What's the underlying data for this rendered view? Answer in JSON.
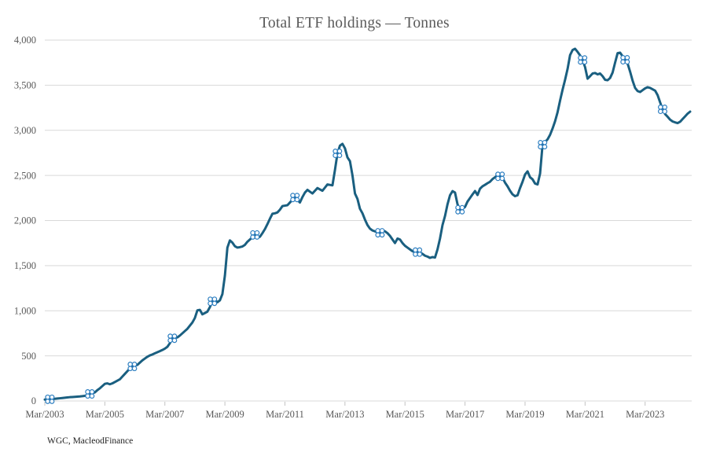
{
  "page": {
    "background": "#ffffff"
  },
  "chart_data": {
    "type": "line",
    "title": "Total ETF holdings — Tonnes",
    "source": "WGC, MacleodFinance",
    "xlabel": "",
    "ylabel": "",
    "x_start": "Mar/2003",
    "x_frequency": "monthly",
    "ylim": [
      0,
      4000
    ],
    "grid": "horizontal",
    "legend_position": "none",
    "colors": {
      "line": "#1a5f80",
      "marker_stroke": "#2e7fc1",
      "marker_fill": "#ffffff",
      "gridline": "#d9d9d9",
      "axis_text": "#595959",
      "title_text": "#595959",
      "source_text": "#1f1f1f"
    },
    "y_ticks": [
      {
        "label": "0",
        "value": 0
      },
      {
        "label": "500",
        "value": 500
      },
      {
        "label": "1,000",
        "value": 1000
      },
      {
        "label": "1,500",
        "value": 1500
      },
      {
        "label": "2,000",
        "value": 2000
      },
      {
        "label": "2,500",
        "value": 2500
      },
      {
        "label": "3,000",
        "value": 3000
      },
      {
        "label": "3,500",
        "value": 3500
      },
      {
        "label": "4,000",
        "value": 4000
      }
    ],
    "x_ticks": [
      {
        "label": "Mar/2003",
        "index": 0
      },
      {
        "label": "Mar/2005",
        "index": 24
      },
      {
        "label": "Mar/2007",
        "index": 48
      },
      {
        "label": "Mar/2009",
        "index": 72
      },
      {
        "label": "Mar/2011",
        "index": 96
      },
      {
        "label": "Mar/2013",
        "index": 120
      },
      {
        "label": "Mar/2015",
        "index": 144
      },
      {
        "label": "Mar/2017",
        "index": 168
      },
      {
        "label": "Mar/2019",
        "index": 192
      },
      {
        "label": "Mar/2021",
        "index": 216
      },
      {
        "label": "Mar/2023",
        "index": 240
      }
    ],
    "series": [
      {
        "name": "Total ETF holdings (tonnes)",
        "values": [
          15,
          17,
          19,
          21,
          24,
          27,
          30,
          33,
          36,
          39,
          42,
          44,
          46,
          48,
          50,
          53,
          57,
          66,
          78,
          85,
          95,
          120,
          140,
          165,
          190,
          195,
          185,
          195,
          210,
          225,
          240,
          270,
          300,
          330,
          360,
          383,
          392,
          400,
          425,
          450,
          470,
          490,
          505,
          515,
          528,
          540,
          552,
          565,
          580,
          600,
          640,
          695,
          700,
          705,
          725,
          750,
          775,
          800,
          835,
          870,
          920,
          1005,
          1010,
          960,
          975,
          990,
          1040,
          1105,
          1120,
          1095,
          1115,
          1185,
          1390,
          1700,
          1780,
          1755,
          1715,
          1700,
          1705,
          1712,
          1730,
          1765,
          1790,
          1815,
          1840,
          1812,
          1820,
          1860,
          1905,
          1960,
          2020,
          2075,
          2080,
          2090,
          2120,
          2160,
          2165,
          2170,
          2200,
          2230,
          2255,
          2230,
          2200,
          2260,
          2310,
          2340,
          2320,
          2300,
          2330,
          2360,
          2345,
          2330,
          2365,
          2400,
          2395,
          2390,
          2560,
          2745,
          2830,
          2850,
          2800,
          2700,
          2658,
          2500,
          2300,
          2240,
          2130,
          2080,
          2010,
          1950,
          1910,
          1890,
          1880,
          1870,
          1864,
          1895,
          1880,
          1860,
          1830,
          1790,
          1750,
          1800,
          1790,
          1750,
          1720,
          1700,
          1680,
          1660,
          1650,
          1650,
          1645,
          1630,
          1610,
          1600,
          1586,
          1595,
          1590,
          1680,
          1800,
          1950,
          2050,
          2180,
          2280,
          2326,
          2310,
          2180,
          2120,
          2130,
          2150,
          2210,
          2250,
          2290,
          2327,
          2283,
          2353,
          2380,
          2396,
          2414,
          2430,
          2460,
          2480,
          2500,
          2490,
          2475,
          2420,
          2379,
          2330,
          2290,
          2270,
          2280,
          2360,
          2430,
          2510,
          2545,
          2480,
          2457,
          2410,
          2400,
          2520,
          2841,
          2870,
          2900,
          2950,
          3020,
          3100,
          3200,
          3330,
          3450,
          3560,
          3680,
          3834,
          3890,
          3904,
          3870,
          3830,
          3780,
          3700,
          3572,
          3600,
          3630,
          3635,
          3620,
          3630,
          3600,
          3560,
          3555,
          3580,
          3640,
          3750,
          3855,
          3861,
          3820,
          3782,
          3740,
          3650,
          3550,
          3470,
          3435,
          3425,
          3445,
          3465,
          3478,
          3470,
          3455,
          3440,
          3390,
          3310,
          3233,
          3180,
          3150,
          3118,
          3098,
          3088,
          3080,
          3095,
          3125,
          3155,
          3185,
          3207
        ],
        "marker_indices": [
          2,
          18,
          35,
          51,
          67,
          84,
          100,
          117,
          134,
          149,
          166,
          182,
          199,
          215,
          232,
          247
        ]
      }
    ]
  }
}
